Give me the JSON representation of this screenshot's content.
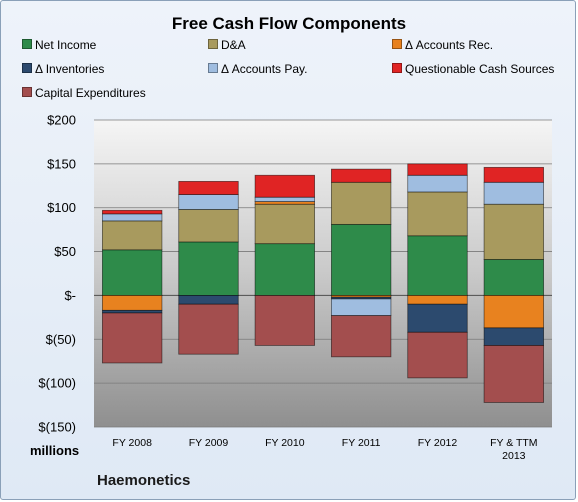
{
  "chart_data": {
    "type": "bar",
    "stacked": true,
    "title": "Free Cash Flow Components",
    "units_label": "millions",
    "company": "Haemonetics",
    "categories": [
      "FY 2008",
      "FY 2009",
      "FY 2010",
      "FY 2011",
      "FY 2012",
      "FY & TTM 2013"
    ],
    "ylim": [
      -150,
      200
    ],
    "yticks": [
      200,
      150,
      100,
      50,
      0,
      -50,
      -100,
      -150
    ],
    "ytick_labels": [
      "$200",
      "$150",
      "$100",
      "$50",
      "$-",
      "$(50)",
      "$(100)",
      "$(150)"
    ],
    "grid": true,
    "legend_position": "top",
    "series": [
      {
        "name": "Net Income",
        "color": "#2e8b4a",
        "values": [
          52,
          61,
          59,
          81,
          68,
          41
        ]
      },
      {
        "name": "D&A",
        "color": "#a89a5e",
        "values": [
          33,
          37,
          45,
          48,
          50,
          63
        ]
      },
      {
        "name": "Δ Accounts Rec.",
        "color": "#e8821f",
        "values": [
          -17,
          0,
          3,
          -2,
          -10,
          -37
        ]
      },
      {
        "name": "Δ Inventories",
        "color": "#2c4a6e",
        "values": [
          -3,
          -10,
          0,
          -2,
          -32,
          -20
        ]
      },
      {
        "name": "Δ Accounts Pay.",
        "color": "#9fbde0",
        "values": [
          8,
          17,
          5,
          -19,
          19,
          25
        ]
      },
      {
        "name": "Questionable Cash Sources",
        "color": "#e02424",
        "values": [
          4,
          15,
          25,
          15,
          13,
          17
        ]
      },
      {
        "name": "Capital Expenditures",
        "color": "#a34e4e",
        "values": [
          -57,
          -57,
          -57,
          -47,
          -52,
          -65
        ]
      }
    ]
  }
}
